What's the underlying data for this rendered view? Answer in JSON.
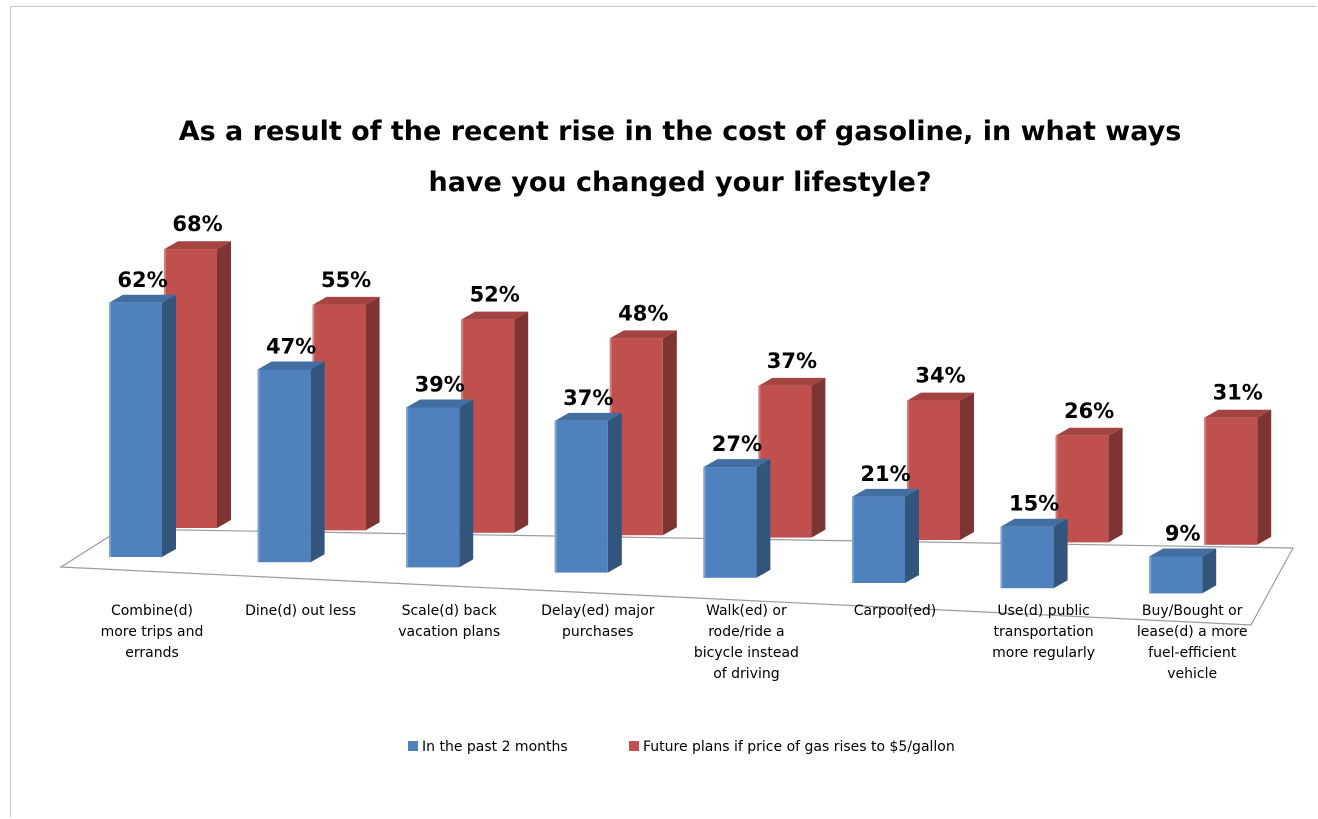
{
  "chart_data": {
    "type": "bar",
    "title": "As a result of the recent rise in the cost of gasoline, in what ways have you changed your lifestyle?",
    "title_lines": [
      "As a result of the recent rise in the cost of gasoline, in what ways",
      "have you changed your lifestyle?"
    ],
    "categories": [
      "Combine(d) more trips and errands",
      "Dine(d) out less",
      "Scale(d) back vacation plans",
      "Delay(ed) major purchases",
      "Walk(ed) or rode/ride a bicycle instead of driving",
      "Carpool(ed)",
      "Use(d) public transportation more regularly",
      "Buy/Bought or lease(d) a more fuel-efficient vehicle"
    ],
    "category_lines": [
      [
        "Combine(d)",
        "more trips and",
        "errands"
      ],
      [
        "Dine(d) out less"
      ],
      [
        "Scale(d) back",
        "vacation plans"
      ],
      [
        "Delay(ed) major",
        "purchases"
      ],
      [
        "Walk(ed) or",
        "rode/ride a",
        "bicycle instead",
        "of driving"
      ],
      [
        "Carpool(ed)"
      ],
      [
        "Use(d) public",
        "transportation",
        "more regularly"
      ],
      [
        "Buy/Bought or",
        "lease(d) a more",
        "fuel-efficient",
        "vehicle"
      ]
    ],
    "series": [
      {
        "name": "In the past 2 months",
        "color": "#4F81BD",
        "values": [
          62,
          47,
          39,
          37,
          27,
          21,
          15,
          9
        ],
        "labels": [
          "62%",
          "47%",
          "39%",
          "37%",
          "27%",
          "21%",
          "15%",
          "9%"
        ]
      },
      {
        "name": "Future plans if price of gas rises to $5/gallon",
        "color": "#C0504D",
        "values": [
          68,
          55,
          52,
          48,
          37,
          34,
          26,
          31
        ],
        "labels": [
          "68%",
          "55%",
          "52%",
          "48%",
          "37%",
          "34%",
          "26%",
          "31%"
        ]
      }
    ],
    "legend_position": "bottom",
    "ylim": [
      0,
      70
    ],
    "grid": false,
    "projection": "3d"
  }
}
